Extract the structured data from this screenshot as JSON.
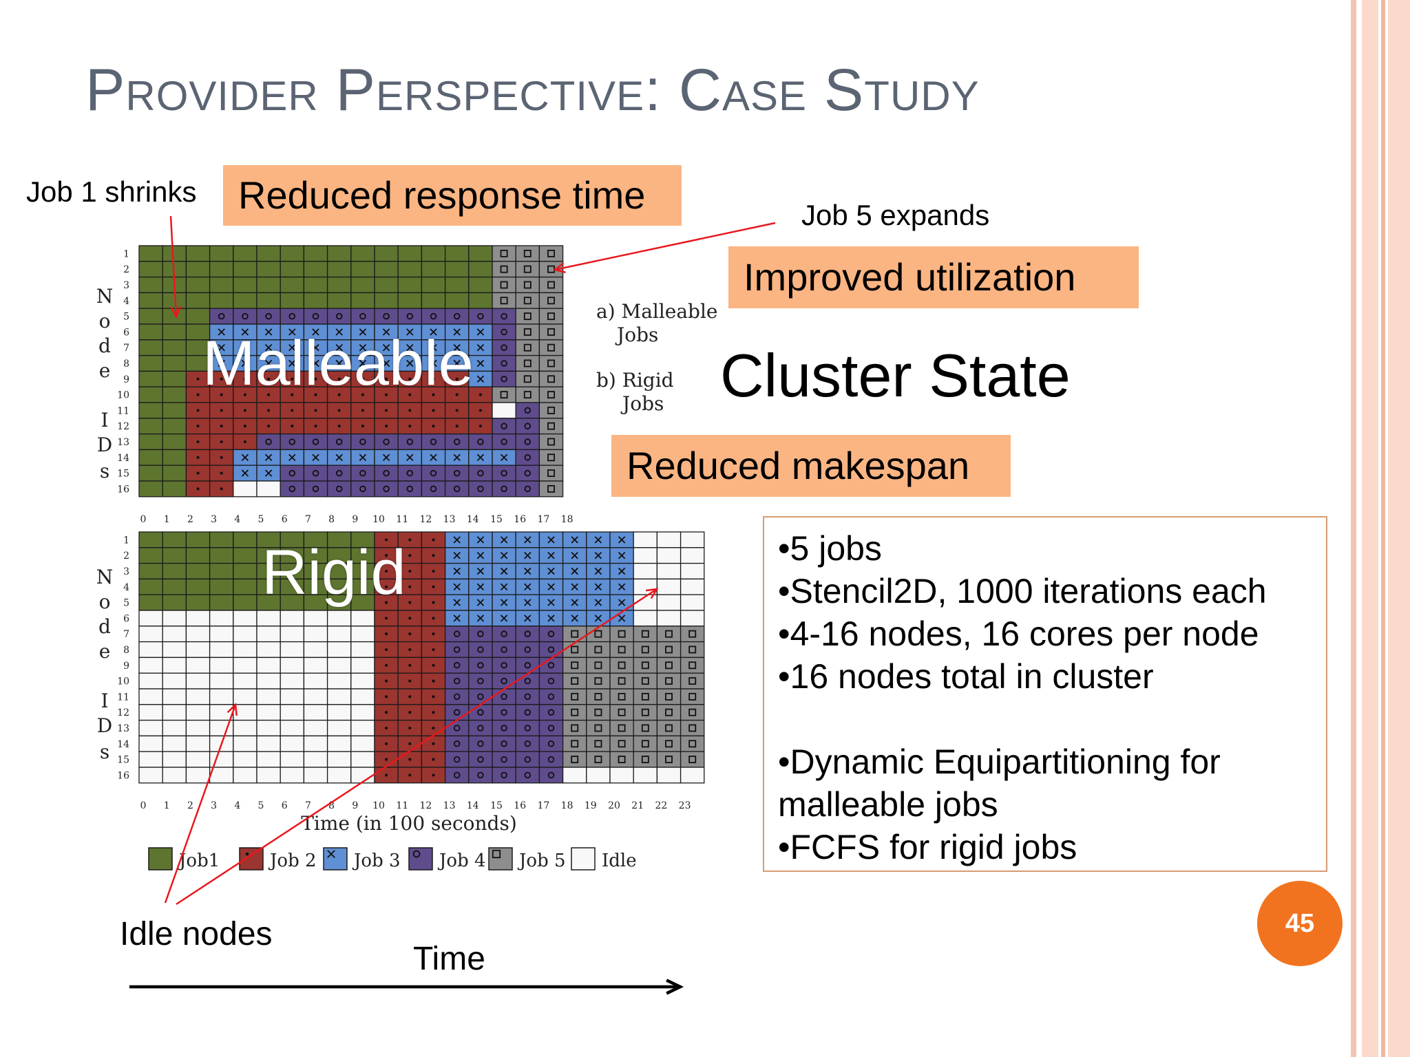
{
  "slide": {
    "title": "Provider Perspective: Case Study",
    "page_number": "45",
    "accent_color": "#fbb583",
    "badge_color": "#f2731f"
  },
  "callouts": {
    "reduced_response_time": "Reduced response time",
    "improved_utilization": "Improved utilization",
    "reduced_makespan": "Reduced makespan"
  },
  "annotations": {
    "job1_shrinks": "Job 1 shrinks",
    "job5_expands": "Job 5 expands",
    "idle_nodes": "Idle nodes",
    "time": "Time",
    "cluster_state": "Cluster State"
  },
  "chart_labels": {
    "malleable_overlay": "Malleable",
    "rigid_overlay": "Rigid",
    "panel_a_line1": "a) Malleable",
    "panel_a_line2": "Jobs",
    "panel_b_line1": "b) Rigid",
    "panel_b_line2": "Jobs",
    "yaxis_letters": [
      "N",
      "o",
      "d",
      "e",
      "I",
      "D",
      "s"
    ],
    "xlabel": "Time (in 100 seconds)"
  },
  "legend": [
    {
      "label": "Job1",
      "color": "#5e7530",
      "marker": "none"
    },
    {
      "label": "Job 2",
      "color": "#9b3530",
      "marker": "dot"
    },
    {
      "label": "Job 3",
      "color": "#5f8fd4",
      "marker": "x"
    },
    {
      "label": "Job 4",
      "color": "#5f4c8c",
      "marker": "o"
    },
    {
      "label": "Job 5",
      "color": "#8e8e8e",
      "marker": "square"
    },
    {
      "label": "Idle",
      "color": "#f8f8f8",
      "marker": "none"
    }
  ],
  "chart_data": [
    {
      "type": "heatmap",
      "name": "a) Malleable Jobs",
      "x_ticks": [
        "0",
        "1",
        "2",
        "3",
        "4",
        "5",
        "6",
        "7",
        "8",
        "9",
        "10",
        "11",
        "12",
        "13",
        "14",
        "15",
        "16",
        "17",
        "18"
      ],
      "y_ticks": [
        "1",
        "2",
        "3",
        "4",
        "5",
        "6",
        "7",
        "8",
        "9",
        "10",
        "11",
        "12",
        "13",
        "14",
        "15",
        "16"
      ],
      "codes": {
        "1": "Job1",
        "2": "Job 2",
        "3": "Job 3",
        "4": "Job 4",
        "5": "Job 5",
        "0": "Idle"
      },
      "rows": [
        "111111111111111555",
        "111111111111111555",
        "111111111111111555",
        "111111111111111555",
        "111444444444444455",
        "111333333333333455",
        "111333333333333455",
        "111333333333333455",
        "112222222222223455",
        "112222222222222555",
        "112222222222222045",
        "112222222222222445",
        "112224444444444445",
        "112233333333333345",
        "112233444444444445",
        "112200444444444445"
      ]
    },
    {
      "type": "heatmap",
      "name": "b) Rigid Jobs",
      "x_ticks": [
        "0",
        "1",
        "2",
        "3",
        "4",
        "5",
        "6",
        "7",
        "8",
        "9",
        "10",
        "11",
        "12",
        "13",
        "14",
        "15",
        "16",
        "17",
        "18",
        "19",
        "20",
        "21",
        "22",
        "23"
      ],
      "y_ticks": [
        "1",
        "2",
        "3",
        "4",
        "5",
        "6",
        "7",
        "8",
        "9",
        "10",
        "11",
        "12",
        "13",
        "14",
        "15",
        "16"
      ],
      "codes": {
        "1": "Job1",
        "2": "Job 2",
        "3": "Job 3",
        "4": "Job 4",
        "5": "Job 5",
        "0": "Idle"
      },
      "rows": [
        "111111111122233333333000",
        "111111111122233333333000",
        "111111111122233333333000",
        "111111111122233333333000",
        "111111111122233333333000",
        "000000000022233333333000",
        "000000000022244444555555",
        "000000000022244444555555",
        "000000000022244444555555",
        "000000000022244444555555",
        "000000000022244444555555",
        "000000000022244444555555",
        "000000000022244444555555",
        "000000000022244444555555",
        "000000000022244444555555",
        "000000000022244444000000"
      ]
    }
  ],
  "info_box": {
    "lines": [
      "•5 jobs",
      "•Stencil2D, 1000 iterations each",
      "•4-16 nodes, 16 cores per  node",
      "•16 nodes total in cluster",
      "",
      "•Dynamic Equipartitioning for",
      "malleable jobs",
      "•FCFS for rigid jobs"
    ]
  }
}
